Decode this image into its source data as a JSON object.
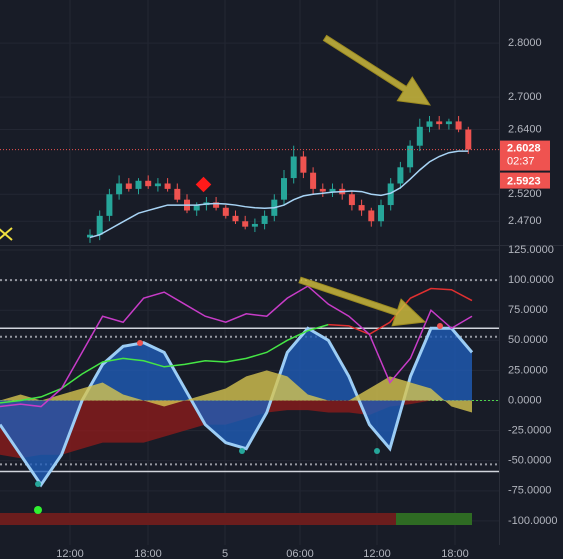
{
  "chart_data": [
    {
      "type": "candlestick",
      "ylim": [
        2.426,
        2.88
      ],
      "yticks": [
        {
          "value": 2.8,
          "label": "2.8000"
        },
        {
          "value": 2.7,
          "label": "2.7000"
        },
        {
          "value": 2.64,
          "label": "2.6400"
        },
        {
          "value": 2.52,
          "label": "2.5200"
        },
        {
          "value": 2.47,
          "label": "2.4700"
        }
      ],
      "up_color": "#26a69a",
      "down_color": "#ef5350",
      "open": [
        2.44,
        2.445,
        2.48,
        2.52,
        2.54,
        2.53,
        2.545,
        2.535,
        2.54,
        2.53,
        2.51,
        2.49,
        2.5,
        2.505,
        2.495,
        2.48,
        2.47,
        2.46,
        2.465,
        2.48,
        2.51,
        2.55,
        2.59,
        2.56,
        2.53,
        2.525,
        2.53,
        2.52,
        2.5,
        2.49,
        2.47,
        2.5,
        2.54,
        2.57,
        2.61,
        2.645,
        2.655,
        2.65,
        2.655,
        2.64
      ],
      "high": [
        2.455,
        2.49,
        2.53,
        2.555,
        2.55,
        2.55,
        2.555,
        2.55,
        2.55,
        2.54,
        2.52,
        2.505,
        2.515,
        2.515,
        2.5,
        2.49,
        2.48,
        2.475,
        2.49,
        2.52,
        2.565,
        2.61,
        2.6,
        2.57,
        2.54,
        2.54,
        2.54,
        2.525,
        2.51,
        2.495,
        2.51,
        2.55,
        2.58,
        2.62,
        2.66,
        2.665,
        2.665,
        2.66,
        2.665,
        2.645
      ],
      "low": [
        2.43,
        2.435,
        2.47,
        2.51,
        2.525,
        2.52,
        2.53,
        2.525,
        2.525,
        2.505,
        2.485,
        2.48,
        2.49,
        2.49,
        2.475,
        2.465,
        2.455,
        2.45,
        2.455,
        2.47,
        2.5,
        2.54,
        2.55,
        2.52,
        2.515,
        2.515,
        2.51,
        2.49,
        2.48,
        2.46,
        2.46,
        2.49,
        2.53,
        2.56,
        2.6,
        2.635,
        2.64,
        2.64,
        2.635,
        2.595
      ],
      "close": [
        2.445,
        2.48,
        2.52,
        2.54,
        2.53,
        2.545,
        2.535,
        2.54,
        2.53,
        2.51,
        2.49,
        2.5,
        2.505,
        2.495,
        2.48,
        2.47,
        2.46,
        2.465,
        2.48,
        2.51,
        2.55,
        2.59,
        2.56,
        2.53,
        2.525,
        2.53,
        2.52,
        2.5,
        2.49,
        2.47,
        2.5,
        2.54,
        2.57,
        2.61,
        2.645,
        2.655,
        2.65,
        2.655,
        2.64,
        2.603
      ],
      "ma": {
        "color": "#a8d4f5",
        "values": [
          2.44,
          2.445,
          2.455,
          2.465,
          2.475,
          2.485,
          2.49,
          2.495,
          2.5,
          2.5,
          2.5,
          2.5,
          2.502,
          2.503,
          2.502,
          2.5,
          2.497,
          2.495,
          2.494,
          2.495,
          2.5,
          2.51,
          2.517,
          2.52,
          2.522,
          2.524,
          2.525,
          2.526,
          2.525,
          2.52,
          2.518,
          2.522,
          2.532,
          2.548,
          2.565,
          2.58,
          2.59,
          2.597,
          2.6,
          2.6
        ]
      },
      "last_price": {
        "value": 2.6028,
        "label": "2.6028"
      },
      "countdown": "02:37",
      "ma_price": {
        "value": 2.5923,
        "label": "2.5923"
      },
      "time_labels": [
        "12:00",
        "18:00",
        "5",
        "06:00",
        "12:00",
        "18:00"
      ]
    },
    {
      "type": "oscillator",
      "ylim": [
        -120,
        125
      ],
      "yticks": [
        {
          "value": 125,
          "label": "125.0000"
        },
        {
          "value": 100,
          "label": "100.0000"
        },
        {
          "value": 75,
          "label": "75.0000"
        },
        {
          "value": 50,
          "label": "50.0000"
        },
        {
          "value": 25,
          "label": "25.0000"
        },
        {
          "value": 0,
          "label": "0.0000"
        },
        {
          "value": -25,
          "label": "-25.0000"
        },
        {
          "value": -50,
          "label": "-50.0000"
        },
        {
          "value": -75,
          "label": "-75.0000"
        },
        {
          "value": -100,
          "label": "-100.0000"
        }
      ],
      "dotted_levels": [
        100,
        53,
        -53
      ],
      "solid_levels": [
        60,
        -59
      ],
      "series": [
        {
          "kind": "area",
          "color": "#8b1c1c",
          "values": [
            -45,
            -48,
            -45,
            -45,
            -40,
            -35,
            -35,
            -35,
            -30,
            -25,
            -20,
            -20,
            -15,
            -10,
            -8,
            -8,
            -10,
            -10,
            -12,
            -5,
            -3,
            0,
            0,
            0
          ]
        },
        {
          "kind": "area",
          "color": "#1f5cb8",
          "stroke": "#9ccdf5",
          "values": [
            -20,
            -45,
            -70,
            -45,
            0,
            30,
            45,
            48,
            40,
            10,
            -20,
            -35,
            -40,
            -10,
            40,
            60,
            50,
            20,
            -20,
            -40,
            20,
            60,
            60,
            40
          ]
        },
        {
          "kind": "area",
          "color": "#d6c450",
          "values": [
            0,
            5,
            0,
            5,
            10,
            15,
            5,
            0,
            -5,
            0,
            5,
            10,
            20,
            25,
            20,
            5,
            0,
            0,
            10,
            20,
            15,
            10,
            -5,
            -10
          ]
        },
        {
          "kind": "line",
          "color": "#45e645",
          "values": [
            -2,
            0,
            3,
            10,
            22,
            32,
            35,
            33,
            28,
            30,
            33,
            32,
            35,
            40,
            50,
            58,
            63,
            null,
            null,
            null,
            null,
            null,
            null,
            null
          ]
        },
        {
          "kind": "line",
          "color": "#e03030",
          "values": [
            null,
            null,
            null,
            null,
            null,
            null,
            null,
            null,
            null,
            null,
            null,
            null,
            null,
            null,
            null,
            null,
            63,
            62,
            55,
            65,
            85,
            93,
            92,
            83
          ]
        },
        {
          "kind": "line",
          "color": "#c83cc8",
          "values": [
            -5,
            -3,
            -5,
            10,
            40,
            70,
            65,
            85,
            90,
            80,
            70,
            65,
            72,
            70,
            85,
            95,
            80,
            70,
            55,
            15,
            35,
            75,
            60,
            70
          ]
        }
      ]
    }
  ]
}
